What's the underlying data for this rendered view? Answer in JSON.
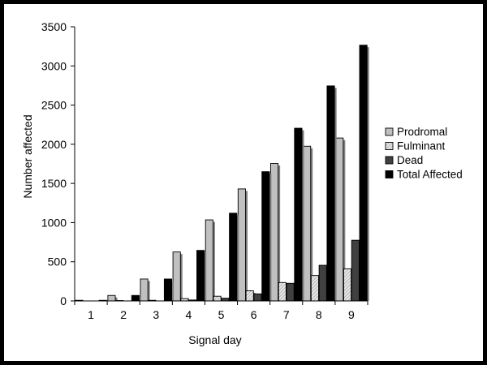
{
  "chart_data": {
    "type": "bar",
    "xlabel": "Signal day",
    "ylabel": "Number affected",
    "categories": [
      "1",
      "2",
      "3",
      "4",
      "5",
      "6",
      "7",
      "8",
      "9"
    ],
    "ylim": [
      0,
      3500
    ],
    "yticks": [
      0,
      500,
      1000,
      1500,
      2000,
      2500,
      3000,
      3500
    ],
    "grid": false,
    "legend_position": "right",
    "series": [
      {
        "name": "Prodromal",
        "color": "#c0c0c0",
        "pattern": "solid-light-grey",
        "values": [
          8,
          70,
          280,
          625,
          1035,
          1430,
          1755,
          1975,
          2080
        ]
      },
      {
        "name": "Fulminant",
        "color": "#d9d9d9",
        "pattern": "diagonal-hatch",
        "values": [
          0,
          5,
          8,
          30,
          60,
          130,
          235,
          325,
          410
        ]
      },
      {
        "name": "Dead",
        "color": "#404040",
        "pattern": "solid-dark-grey",
        "values": [
          0,
          0,
          0,
          12,
          35,
          90,
          225,
          455,
          775
        ]
      },
      {
        "name": "Total Affected",
        "color": "#000000",
        "pattern": "solid-black",
        "values": [
          8,
          70,
          280,
          645,
          1120,
          1650,
          2205,
          2745,
          3265
        ]
      }
    ]
  }
}
